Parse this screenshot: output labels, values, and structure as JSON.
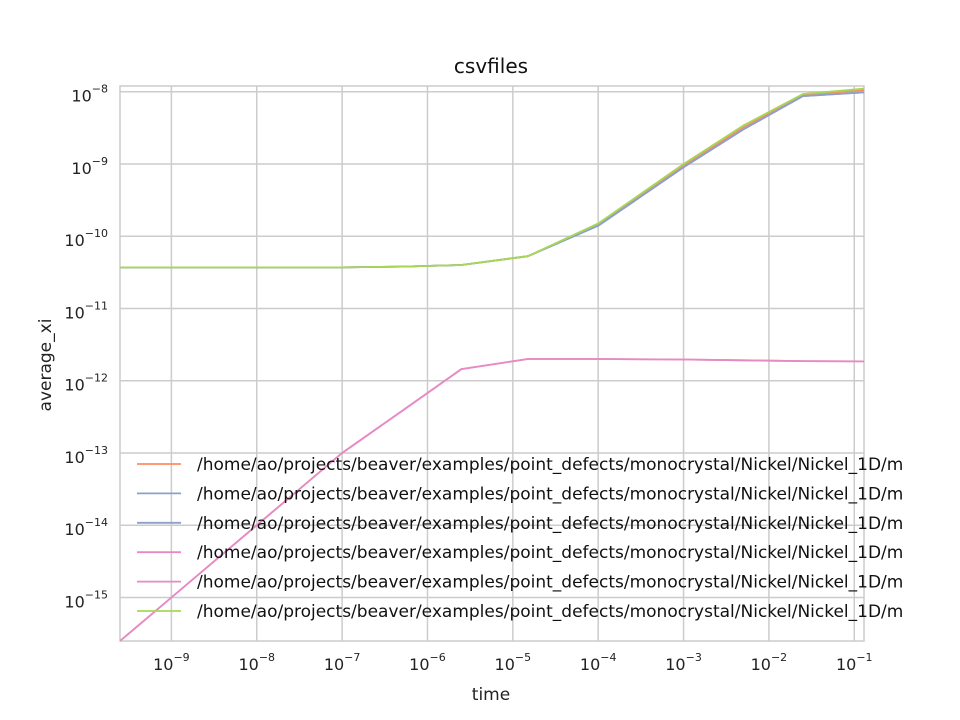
{
  "chart_data": {
    "type": "line",
    "title": "csvfiles",
    "xlabel": "time",
    "ylabel": "average_xi",
    "xscale": "log",
    "yscale": "log",
    "xlim": [
      2.5e-10,
      0.13
    ],
    "ylim": [
      2.5e-16,
      1.2e-08
    ],
    "grid": true,
    "legend_position": "lower-right",
    "x_ticks": [
      {
        "base": "10",
        "exp": "−9",
        "value": 1e-09
      },
      {
        "base": "10",
        "exp": "−8",
        "value": 1e-08
      },
      {
        "base": "10",
        "exp": "−7",
        "value": 1e-07
      },
      {
        "base": "10",
        "exp": "−6",
        "value": 1e-06
      },
      {
        "base": "10",
        "exp": "−5",
        "value": 1e-05
      },
      {
        "base": "10",
        "exp": "−4",
        "value": 0.0001
      },
      {
        "base": "10",
        "exp": "−3",
        "value": 0.001
      },
      {
        "base": "10",
        "exp": "−2",
        "value": 0.01
      },
      {
        "base": "10",
        "exp": "−1",
        "value": 0.1
      }
    ],
    "y_ticks": [
      {
        "base": "10",
        "exp": "−8",
        "value": 1e-08
      },
      {
        "base": "10",
        "exp": "−9",
        "value": 1e-09
      },
      {
        "base": "10",
        "exp": "−10",
        "value": 1e-10
      },
      {
        "base": "10",
        "exp": "−11",
        "value": 1e-11
      },
      {
        "base": "10",
        "exp": "−12",
        "value": 1e-12
      },
      {
        "base": "10",
        "exp": "−13",
        "value": 1e-13
      },
      {
        "base": "10",
        "exp": "−14",
        "value": 1e-14
      },
      {
        "base": "10",
        "exp": "−15",
        "value": 1e-15
      }
    ],
    "series": [
      {
        "name": "/home/ao/projects/beaver/examples/point_defects/monocrystal/Nickel/Nickel_1D/m",
        "color": "#fc8d62",
        "x": [
          2.5e-10,
          1e-09,
          1e-08,
          1e-07,
          5e-07,
          2.5e-06,
          1.5e-05,
          0.0001,
          0.001,
          0.005,
          0.025,
          0.13
        ],
        "y": [
          3.7e-11,
          3.7e-11,
          3.7e-11,
          3.7e-11,
          3.8e-11,
          4e-11,
          5.3e-11,
          1.45e-10,
          9.5e-10,
          3.2e-09,
          9e-09,
          1.05e-08
        ]
      },
      {
        "name": "/home/ao/projects/beaver/examples/point_defects/monocrystal/Nickel/Nickel_1D/m",
        "color": "#8da0cb",
        "x": [
          2.5e-10,
          1e-09,
          1e-08,
          1e-07,
          5e-07,
          2.5e-06,
          1.5e-05,
          0.0001,
          0.001,
          0.005,
          0.025,
          0.13
        ],
        "y": [
          3.7e-11,
          3.7e-11,
          3.7e-11,
          3.7e-11,
          3.8e-11,
          4e-11,
          5.3e-11,
          1.4e-10,
          9e-10,
          3e-09,
          8.7e-09,
          9.8e-09
        ]
      },
      {
        "name": "/home/ao/projects/beaver/examples/point_defects/monocrystal/Nickel/Nickel_1D/m",
        "color": "#8da0cb",
        "x": [
          2.5e-10,
          1e-09,
          1e-08,
          1e-07,
          5e-07,
          2.5e-06,
          1.5e-05,
          0.0001,
          0.001,
          0.005,
          0.025,
          0.13
        ],
        "y": [
          3.7e-11,
          3.7e-11,
          3.7e-11,
          3.7e-11,
          3.8e-11,
          4e-11,
          5.3e-11,
          1.4e-10,
          9e-10,
          3e-09,
          8.7e-09,
          9.8e-09
        ]
      },
      {
        "name": "/home/ao/projects/beaver/examples/point_defects/monocrystal/Nickel/Nickel_1D/m",
        "color": "#e78ac3",
        "x": [
          2.5e-10,
          1e-09,
          1e-08,
          1e-07,
          5e-07,
          2.5e-06,
          1.5e-05,
          0.0001,
          0.001,
          0.005,
          0.025,
          0.13
        ],
        "y": [
          2.5e-16,
          1e-15,
          1e-14,
          1e-13,
          3.8e-13,
          1.45e-12,
          2e-12,
          2e-12,
          1.97e-12,
          1.92e-12,
          1.87e-12,
          1.85e-12
        ]
      },
      {
        "name": "/home/ao/projects/beaver/examples/point_defects/monocrystal/Nickel/Nickel_1D/m",
        "color": "#e78ac3",
        "x": [
          2.5e-10,
          1e-09,
          1e-08,
          1e-07,
          5e-07,
          2.5e-06,
          1.5e-05,
          0.0001,
          0.001,
          0.005,
          0.025,
          0.13
        ],
        "y": [
          2.5e-16,
          1e-15,
          1e-14,
          1e-13,
          3.8e-13,
          1.45e-12,
          2e-12,
          2e-12,
          1.97e-12,
          1.92e-12,
          1.87e-12,
          1.85e-12
        ]
      },
      {
        "name": "/home/ao/projects/beaver/examples/point_defects/monocrystal/Nickel/Nickel_1D/m",
        "color": "#a6d854",
        "x": [
          2.5e-10,
          1e-09,
          1e-08,
          1e-07,
          5e-07,
          2.5e-06,
          1.5e-05,
          0.0001,
          0.001,
          0.005,
          0.025,
          0.13
        ],
        "y": [
          3.7e-11,
          3.7e-11,
          3.7e-11,
          3.7e-11,
          3.8e-11,
          4e-11,
          5.3e-11,
          1.5e-10,
          1e-09,
          3.4e-09,
          9.3e-09,
          1.1e-08
        ]
      }
    ]
  }
}
